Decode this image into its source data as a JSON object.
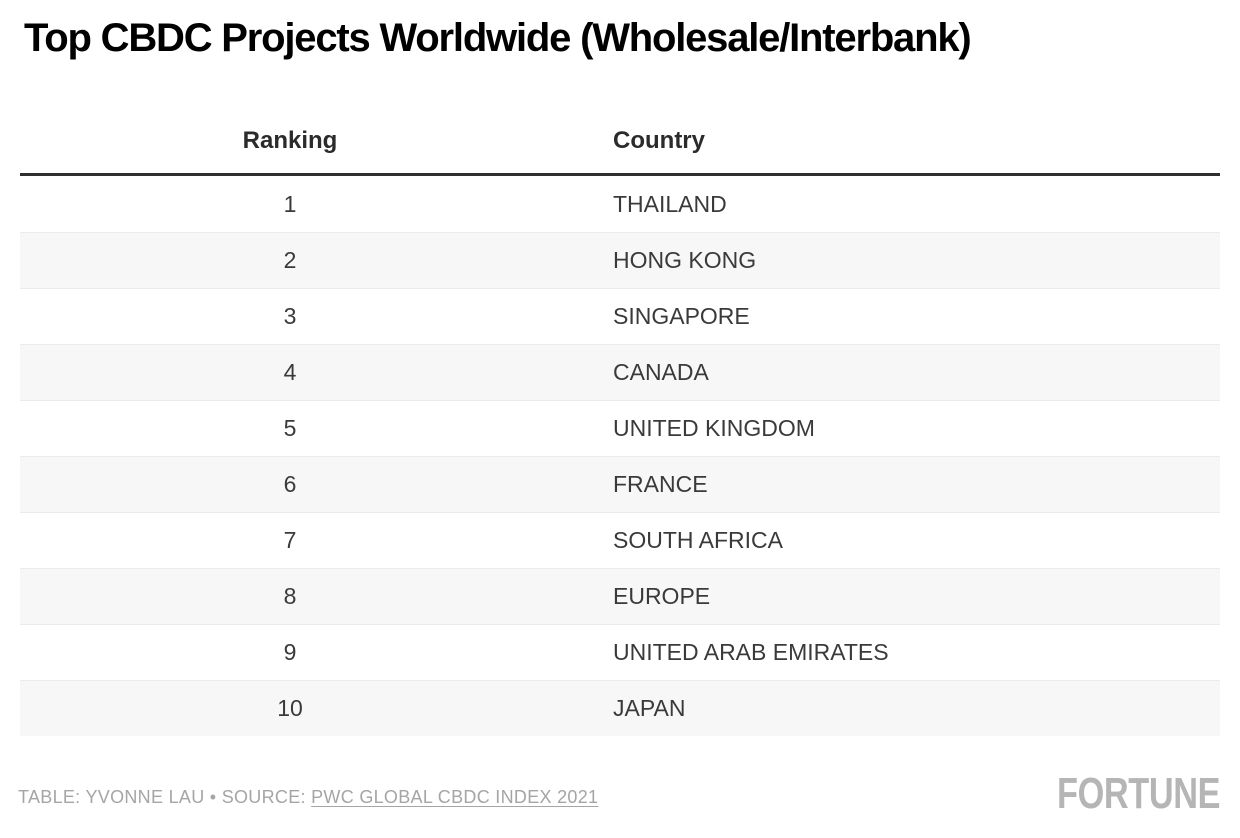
{
  "title": "Top CBDC Projects Worldwide (Wholesale/Interbank)",
  "table": {
    "columns": [
      {
        "label": "Ranking"
      },
      {
        "label": "Country"
      }
    ],
    "rows": [
      {
        "ranking": "1",
        "country": "THAILAND"
      },
      {
        "ranking": "2",
        "country": "HONG KONG"
      },
      {
        "ranking": "3",
        "country": "SINGAPORE"
      },
      {
        "ranking": "4",
        "country": "CANADA"
      },
      {
        "ranking": "5",
        "country": "UNITED KINGDOM"
      },
      {
        "ranking": "6",
        "country": "FRANCE"
      },
      {
        "ranking": "7",
        "country": "SOUTH AFRICA"
      },
      {
        "ranking": "8",
        "country": "EUROPE"
      },
      {
        "ranking": "9",
        "country": "UNITED ARAB EMIRATES"
      },
      {
        "ranking": "10",
        "country": "JAPAN"
      }
    ]
  },
  "footer": {
    "credit_prefix": "TABLE: YVONNE LAU • SOURCE: ",
    "source_link": "PWC GLOBAL CBDC INDEX 2021",
    "brand": "FORTUNE"
  },
  "colors": {
    "row_stripe": "#f7f7f7",
    "row_border": "#ebebeb",
    "header_rule": "#2f2f2f",
    "body_text": "#3a3a3a",
    "footer_text": "#a5a5a5",
    "brand_gray": "#b5b5b5"
  },
  "chart_data": {
    "type": "table",
    "title": "Top CBDC Projects Worldwide (Wholesale/Interbank)",
    "columns": [
      "Ranking",
      "Country"
    ],
    "rows": [
      [
        1,
        "THAILAND"
      ],
      [
        2,
        "HONG KONG"
      ],
      [
        3,
        "SINGAPORE"
      ],
      [
        4,
        "CANADA"
      ],
      [
        5,
        "UNITED KINGDOM"
      ],
      [
        6,
        "FRANCE"
      ],
      [
        7,
        "SOUTH AFRICA"
      ],
      [
        8,
        "EUROPE"
      ],
      [
        9,
        "UNITED ARAB EMIRATES"
      ],
      [
        10,
        "JAPAN"
      ]
    ],
    "credit": "TABLE: YVONNE LAU",
    "source": "PWC GLOBAL CBDC INDEX 2021",
    "layout_hints": {
      "striped_rows": true,
      "ranking_alignment": "center",
      "country_alignment": "left"
    }
  }
}
